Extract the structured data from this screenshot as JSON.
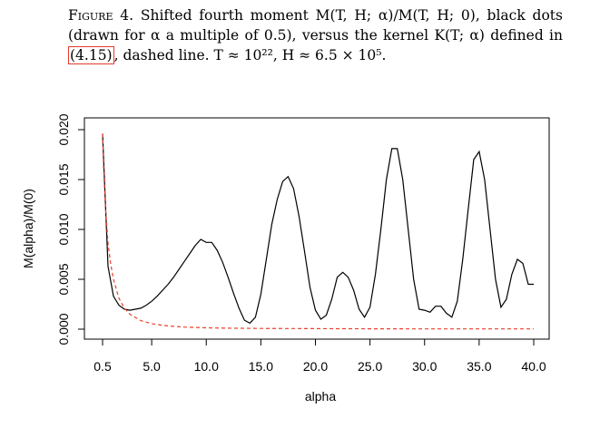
{
  "caption": {
    "label": "Figure 4.",
    "part1": " Shifted fourth moment M(T, H; α)/M(T, H; 0), black dots (drawn for α a multiple of 0.5), versus the kernel K(T; α) defined in ",
    "ref": "(4.15)",
    "part2": ", dashed line. T ≈ 10²², H ≈ 6.5 × 10⁵."
  },
  "chart_data": {
    "type": "line",
    "title": "",
    "xlabel": "alpha",
    "ylabel": "M(alpha)/M(0)",
    "xlim": [
      0.5,
      40.0
    ],
    "ylim": [
      0.0,
      0.02
    ],
    "xticks": [
      0.5,
      5.0,
      10.0,
      15.0,
      20.0,
      25.0,
      30.0,
      35.0,
      40.0
    ],
    "xtick_labels": [
      "0.5",
      "5.0",
      "10.0",
      "15.0",
      "20.0",
      "25.0",
      "30.0",
      "35.0",
      "40.0"
    ],
    "yticks": [
      0.0,
      0.005,
      0.01,
      0.015,
      0.02
    ],
    "ytick_labels": [
      "0.000",
      "0.005",
      "0.010",
      "0.015",
      "0.020"
    ],
    "grid": false,
    "series": [
      {
        "style": "solid",
        "color": "#000000",
        "x": [
          0.5,
          1.0,
          1.5,
          2.0,
          2.5,
          3.0,
          3.5,
          4.0,
          4.5,
          5.0,
          5.5,
          6.0,
          6.5,
          7.0,
          7.5,
          8.0,
          8.5,
          9.0,
          9.5,
          10.0,
          10.5,
          11.0,
          11.5,
          12.0,
          12.5,
          13.0,
          13.5,
          14.0,
          14.5,
          15.0,
          15.5,
          16.0,
          16.5,
          17.0,
          17.5,
          18.0,
          18.5,
          19.0,
          19.5,
          20.0,
          20.5,
          21.0,
          21.5,
          22.0,
          22.5,
          23.0,
          23.5,
          24.0,
          24.5,
          25.0,
          25.5,
          26.0,
          26.5,
          27.0,
          27.5,
          28.0,
          28.5,
          29.0,
          29.5,
          30.0,
          30.5,
          31.0,
          31.5,
          32.0,
          32.5,
          33.0,
          33.5,
          34.0,
          34.5,
          35.0,
          35.5,
          36.0,
          36.5,
          37.0,
          37.5,
          38.0,
          38.5,
          39.0,
          39.5,
          40.0
        ],
        "y": [
          0.0196,
          0.0063,
          0.0033,
          0.0024,
          0.002,
          0.0019,
          0.002,
          0.0021,
          0.0024,
          0.0028,
          0.0033,
          0.0039,
          0.0045,
          0.0052,
          0.006,
          0.0068,
          0.0076,
          0.0084,
          0.009,
          0.0087,
          0.0087,
          0.0079,
          0.0067,
          0.0052,
          0.0036,
          0.0021,
          0.0009,
          0.0006,
          0.0012,
          0.0035,
          0.007,
          0.0105,
          0.013,
          0.0148,
          0.0153,
          0.0141,
          0.0113,
          0.0078,
          0.0042,
          0.0019,
          0.001,
          0.0014,
          0.003,
          0.0052,
          0.0057,
          0.0052,
          0.0039,
          0.002,
          0.0012,
          0.0022,
          0.0055,
          0.01,
          0.015,
          0.0181,
          0.0181,
          0.015,
          0.01,
          0.005,
          0.002,
          0.0019,
          0.0017,
          0.0023,
          0.0023,
          0.0016,
          0.0012,
          0.0028,
          0.007,
          0.012,
          0.017,
          0.0178,
          0.015,
          0.01,
          0.005,
          0.0022,
          0.003,
          0.0055,
          0.007,
          0.0066,
          0.0045,
          0.0045
        ]
      },
      {
        "style": "dashed",
        "color": "#e8412c",
        "x": [
          0.5,
          0.6,
          0.75,
          1.0,
          1.25,
          1.5,
          2.0,
          2.5,
          3.0,
          4.0,
          5.0,
          6.0,
          7.0,
          8.0,
          9.0,
          10.0,
          12.0,
          15.0,
          20.0,
          25.0,
          30.0,
          35.0,
          40.0
        ],
        "y": [
          0.0196,
          0.016,
          0.0125,
          0.0086,
          0.0065,
          0.005,
          0.0031,
          0.0021,
          0.0015,
          0.00085,
          0.00055,
          0.00038,
          0.00028,
          0.00021,
          0.00017,
          0.00014,
          0.0001,
          7e-05,
          5e-05,
          4e-05,
          3e-05,
          3e-05,
          3e-05
        ]
      }
    ]
  }
}
